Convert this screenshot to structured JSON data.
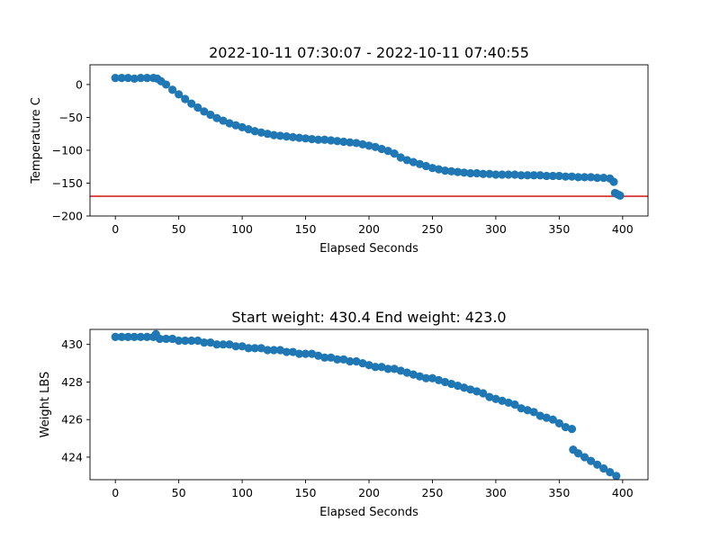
{
  "chart_data": [
    {
      "type": "scatter",
      "title": "2022-10-11 07:30:07 - 2022-10-11 07:40:55",
      "xlabel": "Elapsed Seconds",
      "ylabel": "Temperature C",
      "xlim": [
        -20,
        420
      ],
      "ylim": [
        -200,
        30
      ],
      "xticks": [
        0,
        50,
        100,
        150,
        200,
        250,
        300,
        350,
        400
      ],
      "xtick_labels": [
        "0",
        "50",
        "100",
        "150",
        "200",
        "250",
        "300",
        "350",
        "400"
      ],
      "yticks": [
        0,
        -50,
        -100,
        -150,
        -200
      ],
      "ytick_labels": [
        "0",
        "−50",
        "−100",
        "−150",
        "−200"
      ],
      "marker_color": "#1f77b4",
      "reference_line": {
        "y": -170,
        "color": "#d62728"
      },
      "points": [
        [
          0,
          10
        ],
        [
          5,
          10
        ],
        [
          10,
          10
        ],
        [
          15,
          9
        ],
        [
          20,
          10
        ],
        [
          25,
          10
        ],
        [
          30,
          10
        ],
        [
          33,
          9
        ],
        [
          36,
          5
        ],
        [
          40,
          0
        ],
        [
          45,
          -8
        ],
        [
          50,
          -15
        ],
        [
          55,
          -22
        ],
        [
          60,
          -29
        ],
        [
          65,
          -35
        ],
        [
          70,
          -41
        ],
        [
          75,
          -46
        ],
        [
          80,
          -51
        ],
        [
          85,
          -55
        ],
        [
          90,
          -59
        ],
        [
          95,
          -62
        ],
        [
          100,
          -65
        ],
        [
          105,
          -68
        ],
        [
          110,
          -71
        ],
        [
          115,
          -73
        ],
        [
          120,
          -75
        ],
        [
          125,
          -77
        ],
        [
          130,
          -78
        ],
        [
          135,
          -79
        ],
        [
          140,
          -80
        ],
        [
          145,
          -81
        ],
        [
          150,
          -82
        ],
        [
          155,
          -83
        ],
        [
          160,
          -84
        ],
        [
          165,
          -84
        ],
        [
          170,
          -85
        ],
        [
          175,
          -86
        ],
        [
          180,
          -87
        ],
        [
          185,
          -88
        ],
        [
          190,
          -89
        ],
        [
          195,
          -91
        ],
        [
          200,
          -93
        ],
        [
          205,
          -95
        ],
        [
          210,
          -98
        ],
        [
          215,
          -101
        ],
        [
          220,
          -105
        ],
        [
          225,
          -111
        ],
        [
          230,
          -115
        ],
        [
          235,
          -118
        ],
        [
          240,
          -121
        ],
        [
          245,
          -124
        ],
        [
          250,
          -127
        ],
        [
          255,
          -129
        ],
        [
          260,
          -131
        ],
        [
          265,
          -132
        ],
        [
          270,
          -133
        ],
        [
          275,
          -134
        ],
        [
          280,
          -135
        ],
        [
          285,
          -135
        ],
        [
          290,
          -136
        ],
        [
          295,
          -136
        ],
        [
          300,
          -137
        ],
        [
          305,
          -137
        ],
        [
          310,
          -137
        ],
        [
          315,
          -137
        ],
        [
          320,
          -138
        ],
        [
          325,
          -138
        ],
        [
          330,
          -138
        ],
        [
          335,
          -138
        ],
        [
          340,
          -139
        ],
        [
          345,
          -139
        ],
        [
          350,
          -139
        ],
        [
          355,
          -140
        ],
        [
          360,
          -140
        ],
        [
          365,
          -141
        ],
        [
          370,
          -141
        ],
        [
          375,
          -141
        ],
        [
          380,
          -142
        ],
        [
          385,
          -142
        ],
        [
          390,
          -143
        ],
        [
          393,
          -148
        ],
        [
          394,
          -165
        ],
        [
          395,
          -166
        ],
        [
          397,
          -168
        ],
        [
          398,
          -169
        ]
      ]
    },
    {
      "type": "scatter",
      "title": "Start weight: 430.4 End weight: 423.0",
      "xlabel": "Elapsed Seconds",
      "ylabel": "Weight LBS",
      "xlim": [
        -20,
        420
      ],
      "ylim": [
        422.8,
        430.8
      ],
      "xticks": [
        0,
        50,
        100,
        150,
        200,
        250,
        300,
        350,
        400
      ],
      "xtick_labels": [
        "0",
        "50",
        "100",
        "150",
        "200",
        "250",
        "300",
        "350",
        "400"
      ],
      "yticks": [
        424,
        426,
        428,
        430
      ],
      "ytick_labels": [
        "424",
        "426",
        "428",
        "430"
      ],
      "marker_color": "#1f77b4",
      "points": [
        [
          0,
          430.4
        ],
        [
          5,
          430.4
        ],
        [
          10,
          430.4
        ],
        [
          15,
          430.4
        ],
        [
          20,
          430.4
        ],
        [
          25,
          430.4
        ],
        [
          30,
          430.4
        ],
        [
          32,
          430.55
        ],
        [
          35,
          430.3
        ],
        [
          40,
          430.3
        ],
        [
          45,
          430.3
        ],
        [
          50,
          430.2
        ],
        [
          55,
          430.2
        ],
        [
          60,
          430.2
        ],
        [
          65,
          430.2
        ],
        [
          70,
          430.1
        ],
        [
          75,
          430.1
        ],
        [
          80,
          430.0
        ],
        [
          85,
          430.0
        ],
        [
          90,
          430.0
        ],
        [
          95,
          429.9
        ],
        [
          100,
          429.9
        ],
        [
          105,
          429.8
        ],
        [
          110,
          429.8
        ],
        [
          115,
          429.8
        ],
        [
          120,
          429.7
        ],
        [
          125,
          429.7
        ],
        [
          130,
          429.7
        ],
        [
          135,
          429.6
        ],
        [
          140,
          429.6
        ],
        [
          145,
          429.5
        ],
        [
          150,
          429.5
        ],
        [
          155,
          429.5
        ],
        [
          160,
          429.4
        ],
        [
          165,
          429.3
        ],
        [
          170,
          429.3
        ],
        [
          175,
          429.2
        ],
        [
          180,
          429.2
        ],
        [
          185,
          429.1
        ],
        [
          190,
          429.1
        ],
        [
          195,
          429.0
        ],
        [
          200,
          428.9
        ],
        [
          205,
          428.8
        ],
        [
          210,
          428.8
        ],
        [
          215,
          428.7
        ],
        [
          220,
          428.7
        ],
        [
          225,
          428.6
        ],
        [
          230,
          428.5
        ],
        [
          235,
          428.4
        ],
        [
          240,
          428.3
        ],
        [
          245,
          428.2
        ],
        [
          250,
          428.2
        ],
        [
          255,
          428.1
        ],
        [
          260,
          428.0
        ],
        [
          265,
          427.9
        ],
        [
          270,
          427.8
        ],
        [
          275,
          427.7
        ],
        [
          280,
          427.6
        ],
        [
          285,
          427.5
        ],
        [
          290,
          427.4
        ],
        [
          295,
          427.2
        ],
        [
          300,
          427.1
        ],
        [
          305,
          427.0
        ],
        [
          310,
          426.9
        ],
        [
          315,
          426.8
        ],
        [
          320,
          426.6
        ],
        [
          325,
          426.5
        ],
        [
          330,
          426.4
        ],
        [
          335,
          426.2
        ],
        [
          340,
          426.1
        ],
        [
          345,
          426.0
        ],
        [
          350,
          425.8
        ],
        [
          355,
          425.6
        ],
        [
          360,
          425.5
        ],
        [
          361,
          424.4
        ],
        [
          365,
          424.2
        ],
        [
          370,
          424.0
        ],
        [
          375,
          423.8
        ],
        [
          380,
          423.6
        ],
        [
          385,
          423.4
        ],
        [
          390,
          423.2
        ],
        [
          395,
          423.0
        ]
      ]
    }
  ]
}
